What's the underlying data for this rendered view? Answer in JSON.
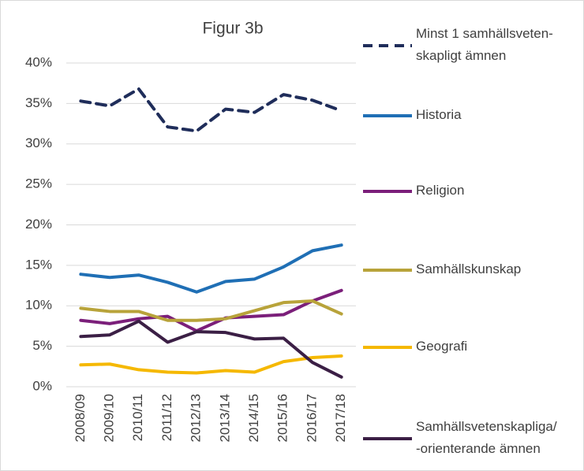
{
  "chart_data": {
    "type": "line",
    "title": "Figur 3b",
    "categories": [
      "2008/09",
      "2009/10",
      "2010/11",
      "2011/12",
      "2012/13",
      "2013/14",
      "2014/15",
      "2015/16",
      "2016/17",
      "2017/18"
    ],
    "series": [
      {
        "name": "Minst 1 samhällsveten-\nskapligt ämnen",
        "color": "#1f2d5a",
        "line_style": "dashed",
        "values": [
          35.3,
          34.7,
          36.8,
          32.1,
          31.6,
          34.3,
          33.9,
          36.1,
          35.4,
          34.1
        ]
      },
      {
        "name": "Historia",
        "color": "#1f6fb5",
        "values": [
          13.9,
          13.5,
          13.8,
          12.9,
          11.7,
          13.0,
          13.3,
          14.8,
          16.8,
          17.5
        ]
      },
      {
        "name": "Religion",
        "color": "#7b1f7a",
        "values": [
          8.2,
          7.8,
          8.4,
          8.7,
          6.9,
          8.5,
          8.7,
          8.9,
          10.6,
          11.9
        ]
      },
      {
        "name": "Samhällskunskap",
        "color": "#b8a33a",
        "values": [
          9.7,
          9.3,
          9.3,
          8.2,
          8.2,
          8.4,
          9.4,
          10.4,
          10.6,
          9.0
        ]
      },
      {
        "name": "Geografi",
        "color": "#f5b800",
        "values": [
          2.7,
          2.8,
          2.1,
          1.8,
          1.7,
          2.0,
          1.8,
          3.1,
          3.6,
          3.8
        ]
      },
      {
        "name": "Samhällsvetenskapliga/\n-orienterande ämnen",
        "color": "#3b1f45",
        "values": [
          6.2,
          6.4,
          8.1,
          5.5,
          6.8,
          6.7,
          5.9,
          6.0,
          3.0,
          1.2
        ]
      }
    ],
    "ylim": [
      0,
      40
    ],
    "yticks": [
      {
        "value": 0,
        "label": "0%"
      },
      {
        "value": 5,
        "label": "5%"
      },
      {
        "value": 10,
        "label": "10%"
      },
      {
        "value": 15,
        "label": "15%"
      },
      {
        "value": 20,
        "label": "20%"
      },
      {
        "value": 25,
        "label": "25%"
      },
      {
        "value": 30,
        "label": "30%"
      },
      {
        "value": 35,
        "label": "35%"
      },
      {
        "value": 40,
        "label": "40%"
      }
    ],
    "grid": true,
    "legend": "right"
  }
}
